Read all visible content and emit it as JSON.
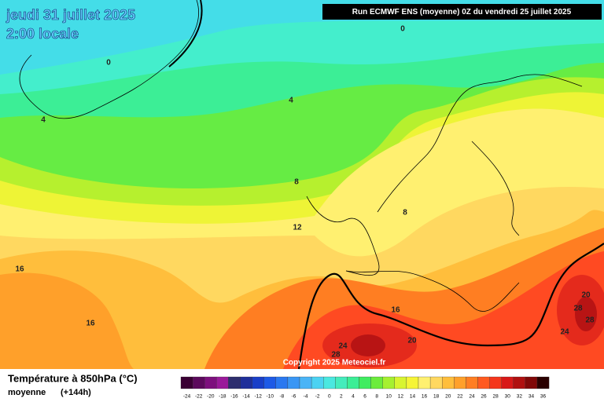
{
  "header": {
    "date": "jeudi 31 juillet 2025",
    "time": "2:00 locale",
    "run": "Run ECMWF ENS (moyenne) 0Z du vendredi 25 juillet 2025"
  },
  "copyright": "Copyright 2025 Meteociel.fr",
  "legend": {
    "title": "Température à 850hPa (°C)",
    "subtitle": "moyenne",
    "lead": "(+144h)",
    "ticks": [
      -24,
      -22,
      -20,
      -18,
      -16,
      -14,
      -12,
      -10,
      -8,
      -6,
      -4,
      -2,
      0,
      2,
      4,
      6,
      8,
      10,
      12,
      14,
      16,
      18,
      20,
      22,
      24,
      26,
      28,
      30,
      32,
      34,
      36
    ],
    "colors": [
      "#3a0033",
      "#5c0a5c",
      "#7d107d",
      "#9a1a9a",
      "#2e2e6e",
      "#1f2f9a",
      "#1a3fc8",
      "#1e5ae6",
      "#2a78f0",
      "#3a96f4",
      "#4ab4f6",
      "#4cd2f2",
      "#4ae8e0",
      "#44ecbc",
      "#3cee96",
      "#40ec60",
      "#6cec3c",
      "#a6f030",
      "#d8f430",
      "#f6f436",
      "#fff070",
      "#ffd860",
      "#ffbe3c",
      "#ffa02a",
      "#ff7e22",
      "#ff5a20",
      "#f4361c",
      "#d81818",
      "#b01010",
      "#800808",
      "#2a0000"
    ]
  },
  "contour_labels": [
    0,
    0,
    4,
    4,
    8,
    8,
    12,
    16,
    16,
    16,
    20,
    24,
    28,
    20,
    28,
    28,
    24
  ]
}
